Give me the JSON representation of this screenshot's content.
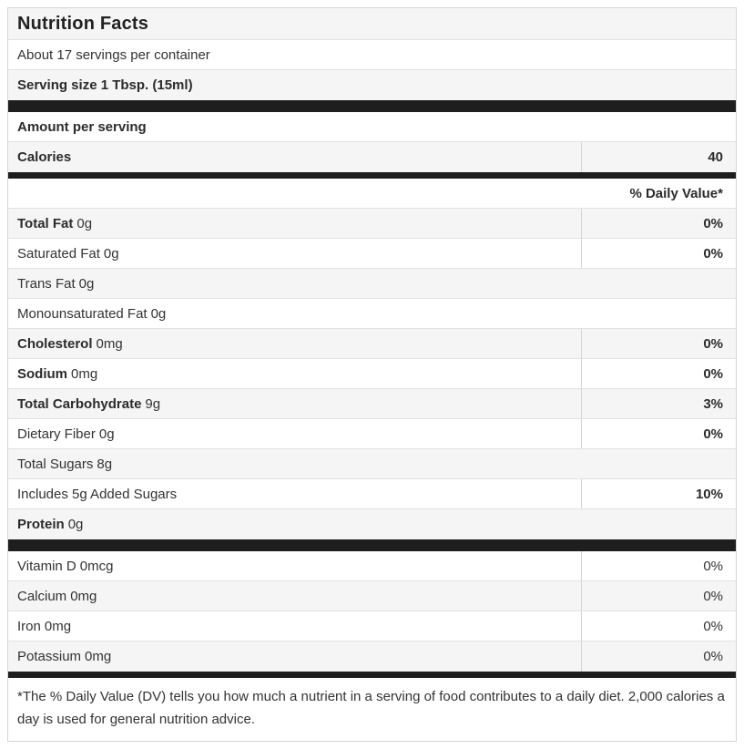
{
  "header": {
    "title": "Nutrition Facts",
    "servings_per_container": "About 17 servings per container",
    "serving_size": "Serving size 1 Tbsp. (15ml)",
    "amount_per_serving": "Amount per serving",
    "daily_value_header": "% Daily Value*"
  },
  "calories": {
    "label": "Calories",
    "value": "40"
  },
  "nutrients": [
    {
      "name": "Total Fat",
      "amount": "0g",
      "dv": "0%"
    },
    {
      "name": "Saturated Fat",
      "amount": "0g",
      "dv": "0%"
    },
    {
      "name": "Trans Fat",
      "amount": "0g",
      "dv": ""
    },
    {
      "name": "Monounsaturated Fat",
      "amount": "0g",
      "dv": ""
    },
    {
      "name": "Cholesterol",
      "amount": "0mg",
      "dv": "0%"
    },
    {
      "name": "Sodium",
      "amount": "0mg",
      "dv": "0%"
    },
    {
      "name": "Total Carbohydrate",
      "amount": "9g",
      "dv": "3%"
    },
    {
      "name": "Dietary Fiber",
      "amount": "0g",
      "dv": "0%"
    },
    {
      "name": "Total Sugars",
      "amount": "8g",
      "dv": ""
    },
    {
      "name": "Includes 5g Added Sugars",
      "amount": "",
      "dv": "10%"
    },
    {
      "name": "Protein",
      "amount": "0g",
      "dv": ""
    }
  ],
  "micronutrients": [
    {
      "name": "Vitamin D",
      "amount": "0mcg",
      "dv": "0%"
    },
    {
      "name": "Calcium",
      "amount": "0mg",
      "dv": "0%"
    },
    {
      "name": "Iron",
      "amount": "0mg",
      "dv": "0%"
    },
    {
      "name": "Potassium",
      "amount": "0mg",
      "dv": "0%"
    }
  ],
  "footnote": "*The % Daily Value (DV) tells you how much a nutrient in a serving of food contributes to a daily diet. 2,000 calories a day is used for general nutrition advice.",
  "colors": {
    "shaded_row": "#f5f5f5",
    "divider_bar": "#1e1e1e",
    "outer_border": "#d4d4d4",
    "row_separator": "#e2e2e2",
    "text": "#333333",
    "bold_text": "#2b2b2b"
  }
}
